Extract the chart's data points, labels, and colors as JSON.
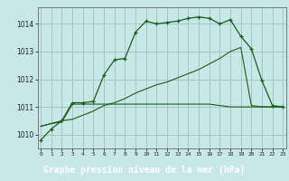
{
  "title": "Graphe pression niveau de la mer (hPa)",
  "bg_color": "#c8e8e8",
  "label_bg_color": "#2d6e2d",
  "label_text_color": "#ffffff",
  "grid_color": "#a0c8c8",
  "line_color": "#1a5c1a",
  "x_labels": [
    "0",
    "1",
    "2",
    "3",
    "4",
    "5",
    "6",
    "7",
    "8",
    "9",
    "10",
    "11",
    "12",
    "13",
    "14",
    "15",
    "16",
    "17",
    "18",
    "19",
    "20",
    "21",
    "22",
    "23"
  ],
  "y_ticks": [
    1010,
    1011,
    1012,
    1013,
    1014
  ],
  "ylim": [
    1009.5,
    1014.6
  ],
  "xlim": [
    -0.3,
    23.3
  ],
  "line1_x": [
    0,
    1,
    2,
    3,
    4,
    5,
    6,
    7,
    8,
    9,
    10,
    11,
    12,
    13,
    14,
    15,
    16,
    17,
    18,
    19,
    20,
    21,
    22,
    23
  ],
  "line1_y": [
    1009.8,
    1010.2,
    1010.5,
    1011.15,
    1011.15,
    1011.2,
    1012.15,
    1012.7,
    1012.75,
    1013.7,
    1014.1,
    1014.0,
    1014.05,
    1014.1,
    1014.2,
    1014.25,
    1014.2,
    1014.0,
    1014.15,
    1013.55,
    1013.1,
    1011.95,
    1011.05,
    1011.0
  ],
  "line2_x": [
    0,
    1,
    2,
    3,
    4,
    5,
    6,
    7,
    8,
    9,
    10,
    11,
    12,
    13,
    14,
    15,
    16,
    17,
    18,
    19,
    20,
    21,
    22,
    23
  ],
  "line2_y": [
    1010.3,
    1010.4,
    1010.5,
    1010.55,
    1010.7,
    1010.85,
    1011.05,
    1011.15,
    1011.3,
    1011.5,
    1011.65,
    1011.8,
    1011.9,
    1012.05,
    1012.2,
    1012.35,
    1012.55,
    1012.75,
    1013.0,
    1013.15,
    1011.05,
    1011.0,
    1011.0,
    1011.0
  ],
  "line3_x": [
    0,
    1,
    2,
    3,
    4,
    5,
    6,
    7,
    8,
    9,
    10,
    11,
    12,
    13,
    14,
    15,
    16,
    17,
    18,
    19,
    20,
    21,
    22,
    23
  ],
  "line3_y": [
    1010.3,
    1010.4,
    1010.45,
    1011.1,
    1011.1,
    1011.1,
    1011.1,
    1011.1,
    1011.1,
    1011.1,
    1011.1,
    1011.1,
    1011.1,
    1011.1,
    1011.1,
    1011.1,
    1011.1,
    1011.05,
    1011.0,
    1011.0,
    1011.0,
    1011.0,
    1011.0,
    1011.0
  ]
}
